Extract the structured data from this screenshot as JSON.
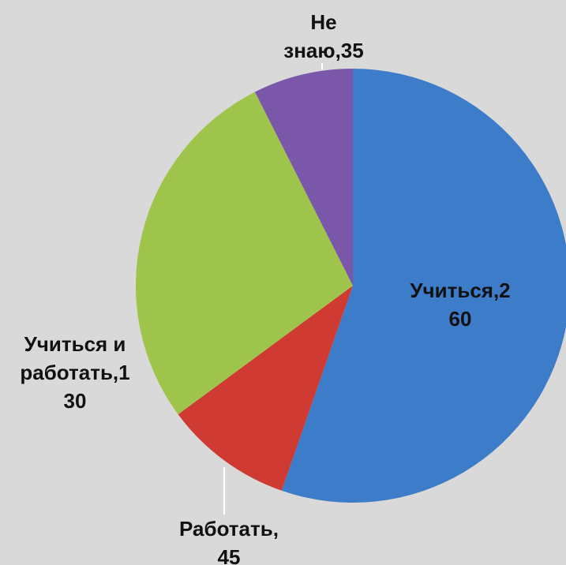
{
  "chart_data": {
    "type": "pie",
    "categories": [
      "Учиться",
      "Работать",
      "Учиться и работать",
      "Не знаю"
    ],
    "values": [
      260,
      45,
      130,
      35
    ],
    "colors": [
      "#3d7cc9",
      "#cf3b32",
      "#9ec44b",
      "#7b57a9"
    ],
    "value_labels": [
      [
        "Учиться,2",
        "60"
      ],
      [
        "Работать,",
        "45"
      ],
      [
        "Учиться и",
        "работать,1",
        "30"
      ],
      [
        "Не",
        "знаю,35"
      ]
    ]
  }
}
